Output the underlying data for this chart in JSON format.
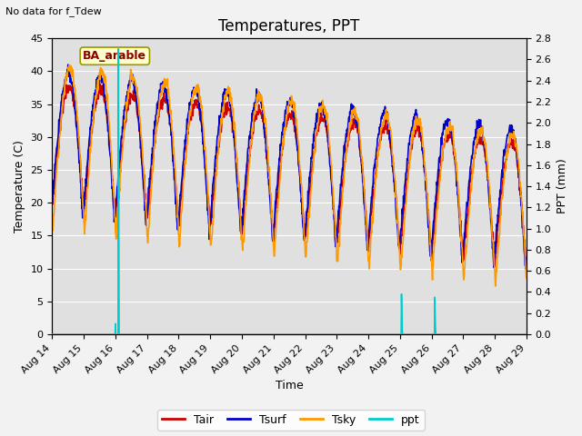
{
  "title": "Temperatures, PPT",
  "subtitle": "No data for f_Tdew",
  "xlabel": "Time",
  "ylabel_left": "Temperature (C)",
  "ylabel_right": "PPT (mm)",
  "site_label": "BA_arable",
  "ylim_left": [
    0,
    45
  ],
  "ylim_right": [
    0,
    2.8
  ],
  "yticks_left": [
    0,
    5,
    10,
    15,
    20,
    25,
    30,
    35,
    40,
    45
  ],
  "yticks_right": [
    0.0,
    0.2,
    0.4,
    0.6,
    0.8,
    1.0,
    1.2,
    1.4,
    1.6,
    1.8,
    2.0,
    2.2,
    2.4,
    2.6,
    2.8
  ],
  "xtick_labels": [
    "Aug 14",
    "Aug 15",
    "Aug 16",
    "Aug 17",
    "Aug 18",
    "Aug 19",
    "Aug 20",
    "Aug 21",
    "Aug 22",
    "Aug 23",
    "Aug 24",
    "Aug 25",
    "Aug 26",
    "Aug 27",
    "Aug 28",
    "Aug 29"
  ],
  "bg_inner_color": "#e0e0e0",
  "bg_outer_color": "#f2f2f2",
  "colors": {
    "Tair": "#cc0000",
    "Tsurf": "#0000cc",
    "Tsky": "#ff9900",
    "ppt": "#00cccc"
  },
  "font_size_title": 12,
  "font_size_labels": 9,
  "font_size_ticks": 8,
  "font_size_subtitle": 8,
  "font_size_sitelabel": 9,
  "font_size_legend": 9
}
